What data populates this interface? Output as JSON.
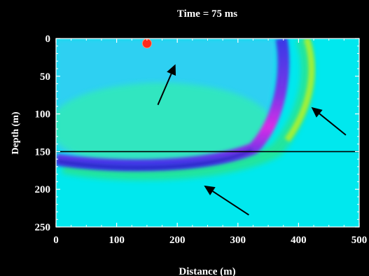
{
  "chart_data": {
    "type": "heatmap",
    "title": "Time = 75 ms",
    "xlabel": "Distance (m)",
    "ylabel": "Depth (m)",
    "xlim": [
      0,
      500
    ],
    "ylim": [
      0,
      250
    ],
    "y_inverted": true,
    "x_ticks": [
      0,
      100,
      200,
      300,
      400,
      500
    ],
    "y_ticks": [
      0,
      50,
      100,
      150,
      200,
      250
    ],
    "source_point": {
      "x": 150,
      "y": 0,
      "color": "#ff2a1a"
    },
    "interface_depth": 150,
    "arrows": [
      {
        "from": [
          168,
          88
        ],
        "to": [
          197,
          34
        ]
      },
      {
        "from": [
          478,
          128
        ],
        "to": [
          421,
          91
        ]
      },
      {
        "from": [
          318,
          234
        ],
        "to": [
          244,
          195
        ]
      }
    ],
    "colormap": [
      "#00e8ee",
      "#2fd6f2",
      "#2aee9c",
      "#b6f52a",
      "#3a3ae8",
      "#d82ce6"
    ]
  }
}
